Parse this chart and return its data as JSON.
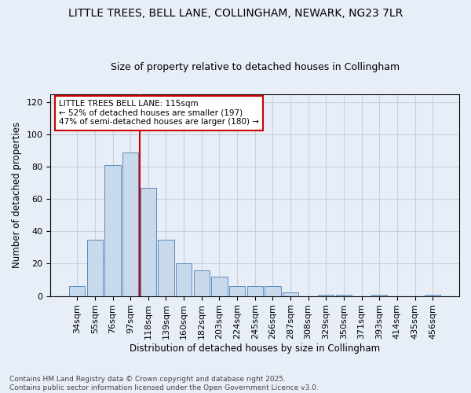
{
  "title": "LITTLE TREES, BELL LANE, COLLINGHAM, NEWARK, NG23 7LR",
  "subtitle": "Size of property relative to detached houses in Collingham",
  "xlabel": "Distribution of detached houses by size in Collingham",
  "ylabel": "Number of detached properties",
  "bar_color": "#c9d9ec",
  "bar_edge_color": "#5b8cbf",
  "categories": [
    "34sqm",
    "55sqm",
    "76sqm",
    "97sqm",
    "118sqm",
    "139sqm",
    "160sqm",
    "182sqm",
    "203sqm",
    "224sqm",
    "245sqm",
    "266sqm",
    "287sqm",
    "308sqm",
    "329sqm",
    "350sqm",
    "371sqm",
    "393sqm",
    "414sqm",
    "435sqm",
    "456sqm"
  ],
  "values": [
    6,
    35,
    81,
    89,
    67,
    35,
    20,
    16,
    12,
    6,
    6,
    6,
    2,
    0,
    1,
    1,
    0,
    1,
    0,
    0,
    1
  ],
  "vline_x": 3.5,
  "vline_color": "#cc0000",
  "annotation_text": "LITTLE TREES BELL LANE: 115sqm\n← 52% of detached houses are smaller (197)\n47% of semi-detached houses are larger (180) →",
  "annotation_box_color": "white",
  "annotation_box_edge": "#cc0000",
  "ylim": [
    0,
    125
  ],
  "yticks": [
    0,
    20,
    40,
    60,
    80,
    100,
    120
  ],
  "grid_color": "#c8d0dc",
  "background_color": "#e8eef7",
  "footer_text": "Contains HM Land Registry data © Crown copyright and database right 2025.\nContains public sector information licensed under the Open Government Licence v3.0.",
  "title_fontsize": 10,
  "subtitle_fontsize": 9,
  "xlabel_fontsize": 8.5,
  "ylabel_fontsize": 8.5,
  "tick_fontsize": 8,
  "footer_fontsize": 6.5,
  "annotation_fontsize": 7.5
}
